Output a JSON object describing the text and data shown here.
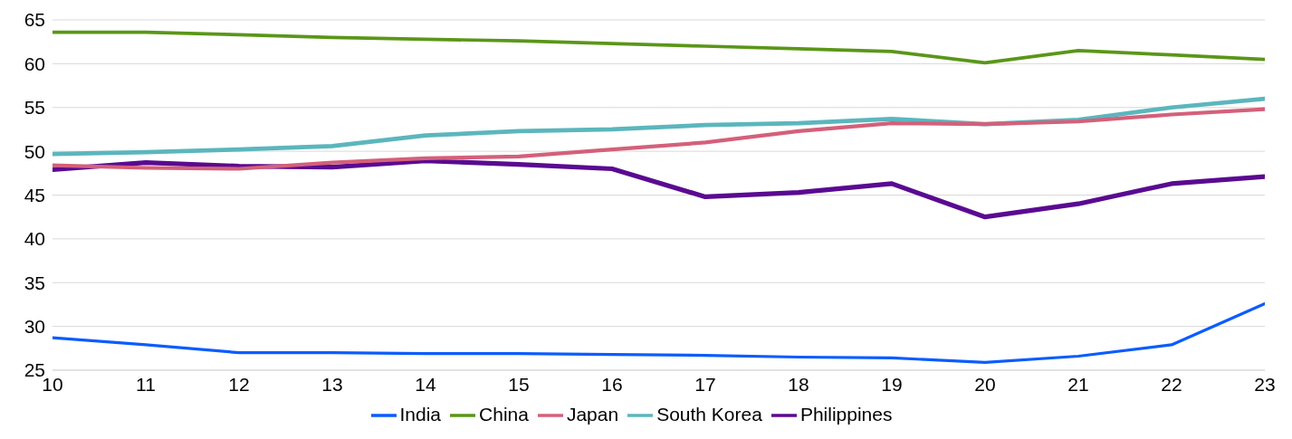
{
  "chart_data": {
    "type": "line",
    "x": [
      10,
      11,
      12,
      13,
      14,
      15,
      16,
      17,
      18,
      19,
      20,
      21,
      22,
      23
    ],
    "series": [
      {
        "name": "India",
        "color": "#0a5cff",
        "values": [
          28.7,
          27.9,
          27.0,
          27.0,
          26.9,
          26.9,
          26.8,
          26.7,
          26.5,
          26.4,
          25.9,
          26.6,
          27.9,
          32.6
        ]
      },
      {
        "name": "China",
        "color": "#5a9618",
        "values": [
          63.6,
          63.6,
          63.3,
          63.0,
          62.8,
          62.6,
          62.3,
          62.0,
          61.7,
          61.4,
          60.1,
          61.5,
          61.0,
          60.5
        ]
      },
      {
        "name": "Japan",
        "color": "#d4607a",
        "values": [
          48.4,
          48.1,
          48.0,
          48.7,
          49.2,
          49.4,
          50.2,
          51.0,
          52.3,
          53.2,
          53.1,
          53.4,
          54.2,
          54.8
        ]
      },
      {
        "name": "South Korea",
        "color": "#5bb6bd",
        "values": [
          49.7,
          49.9,
          50.2,
          50.6,
          51.8,
          52.3,
          52.5,
          53.0,
          53.2,
          53.7,
          53.1,
          53.6,
          55.0,
          56.0
        ]
      },
      {
        "name": "Philippines",
        "color": "#5a0a91",
        "values": [
          47.9,
          48.7,
          48.3,
          48.2,
          48.9,
          48.5,
          48.0,
          44.8,
          45.3,
          46.3,
          42.5,
          44.0,
          46.3,
          47.1
        ]
      }
    ],
    "xlim": [
      10,
      23
    ],
    "xticks": [
      10,
      11,
      12,
      13,
      14,
      15,
      16,
      17,
      18,
      19,
      20,
      21,
      22,
      23
    ],
    "ylim": [
      25,
      65
    ],
    "yticks": [
      25,
      30,
      35,
      40,
      45,
      50,
      55,
      60,
      65
    ],
    "grid": "y",
    "legend": "bottom",
    "marker": "none",
    "line_style": "solid"
  }
}
